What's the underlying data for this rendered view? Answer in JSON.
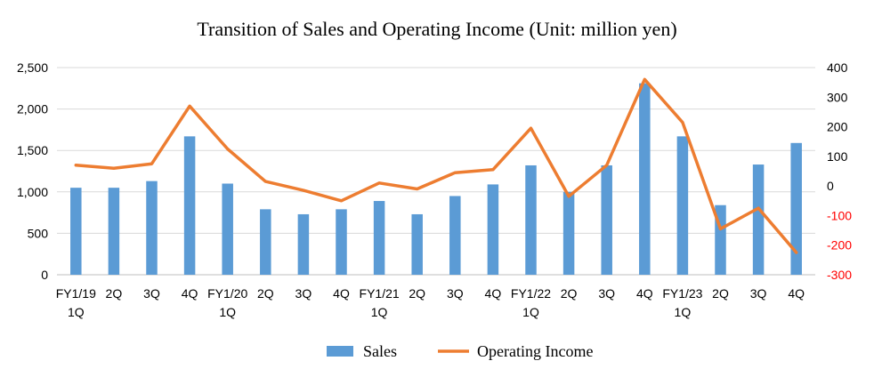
{
  "chart_data": {
    "type": "bar",
    "title": "Transition of Sales and Operating Income (Unit: million yen)",
    "categories": [
      [
        "FY1/19",
        "1Q"
      ],
      [
        "2Q"
      ],
      [
        "3Q"
      ],
      [
        "4Q"
      ],
      [
        "FY1/20",
        "1Q"
      ],
      [
        "2Q"
      ],
      [
        "3Q"
      ],
      [
        "4Q"
      ],
      [
        "FY1/21",
        "1Q"
      ],
      [
        "2Q"
      ],
      [
        "3Q"
      ],
      [
        "4Q"
      ],
      [
        "FY1/22",
        "1Q"
      ],
      [
        "2Q"
      ],
      [
        "3Q"
      ],
      [
        "4Q"
      ],
      [
        "FY1/23",
        "1Q"
      ],
      [
        "2Q"
      ],
      [
        "3Q"
      ],
      [
        "4Q"
      ]
    ],
    "series": [
      {
        "name": "Sales",
        "type": "bar",
        "axis": "left",
        "color": "#5b9bd5",
        "values": [
          1050,
          1050,
          1130,
          1670,
          1100,
          790,
          730,
          790,
          890,
          730,
          950,
          1090,
          1320,
          1000,
          1320,
          2310,
          1670,
          840,
          1330,
          1590
        ]
      },
      {
        "name": "Operating Income",
        "type": "line",
        "axis": "right",
        "color": "#ed7d31",
        "values": [
          70,
          60,
          75,
          270,
          125,
          15,
          -15,
          -50,
          10,
          -10,
          45,
          55,
          195,
          -35,
          70,
          360,
          215,
          -145,
          -75,
          -225
        ]
      }
    ],
    "y_left": {
      "min": 0,
      "max": 2500,
      "ticks": [
        0,
        500,
        1000,
        1500,
        2000,
        2500
      ],
      "tick_labels": [
        "0",
        "500",
        "1,000",
        "1,500",
        "2,000",
        "2,500"
      ]
    },
    "y_right": {
      "min": -300,
      "max": 400,
      "ticks": [
        400,
        300,
        200,
        100,
        0,
        -100,
        -200,
        -300
      ],
      "tick_labels": [
        "400",
        "300",
        "200",
        "100",
        "0",
        "-100",
        "-200",
        "-300"
      ],
      "negative_color": "#ff0000"
    },
    "grid": true,
    "legend": "bottom"
  }
}
